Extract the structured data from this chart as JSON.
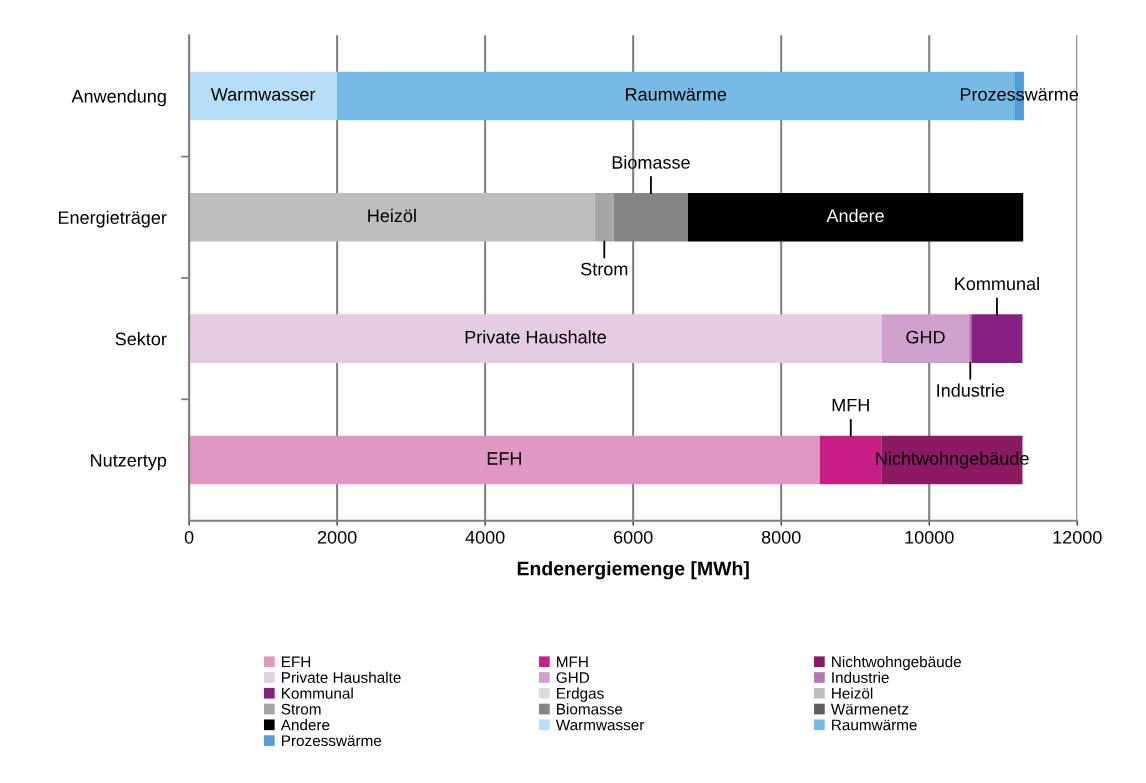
{
  "chart_data": {
    "type": "bar",
    "orientation": "horizontal",
    "stacked": true,
    "categories": [
      "Anwendung",
      "Energieträger",
      "Sektor",
      "Nutzertyp"
    ],
    "xlabel": "Endenergiemenge [MWh]",
    "xlim": [
      0,
      12000
    ],
    "xticks": [
      0,
      2000,
      4000,
      6000,
      8000,
      10000,
      12000
    ],
    "grid": "x",
    "legend": "bottom",
    "series": [
      {
        "name": "EFH",
        "color": "#e097c3",
        "values": [
          null,
          null,
          null,
          8520
        ]
      },
      {
        "name": "MFH",
        "color": "#c81e87",
        "values": [
          null,
          null,
          null,
          840
        ]
      },
      {
        "name": "Nichtwohngebäude",
        "color": "#8b1a62",
        "values": [
          null,
          null,
          null,
          1900
        ]
      },
      {
        "name": "Private Haushalte",
        "color": "#e6cbe4",
        "values": [
          null,
          null,
          9360,
          null
        ]
      },
      {
        "name": "GHD",
        "color": "#d0a0cc",
        "values": [
          null,
          null,
          1180,
          null
        ]
      },
      {
        "name": "Industrie",
        "color": "#b874b0",
        "values": [
          null,
          null,
          30,
          null
        ]
      },
      {
        "name": "Kommunal",
        "color": "#862083",
        "values": [
          null,
          null,
          690,
          null
        ]
      },
      {
        "name": "Erdgas",
        "color": "#dcdcdc",
        "values": [
          null,
          0,
          null,
          null
        ]
      },
      {
        "name": "Heizöl",
        "color": "#bdbdbd",
        "values": [
          null,
          5480,
          null,
          null
        ]
      },
      {
        "name": "Strom",
        "color": "#a6a6a6",
        "values": [
          null,
          260,
          null,
          null
        ]
      },
      {
        "name": "Biomasse",
        "color": "#858585",
        "values": [
          null,
          1000,
          null,
          null
        ]
      },
      {
        "name": "Wärmenetz",
        "color": "#5f5f5f",
        "values": [
          null,
          0,
          null,
          null
        ]
      },
      {
        "name": "Andere",
        "color": "#000000",
        "values": [
          null,
          4530,
          null,
          null
        ]
      },
      {
        "name": "Warmwasser",
        "color": "#b7def7",
        "values": [
          2000,
          null,
          null,
          null
        ]
      },
      {
        "name": "Raumwärme",
        "color": "#78bae6",
        "values": [
          9150,
          null,
          null,
          null
        ]
      },
      {
        "name": "Prozesswärme",
        "color": "#4f9fdc",
        "values": [
          130,
          null,
          null,
          null
        ]
      }
    ]
  }
}
